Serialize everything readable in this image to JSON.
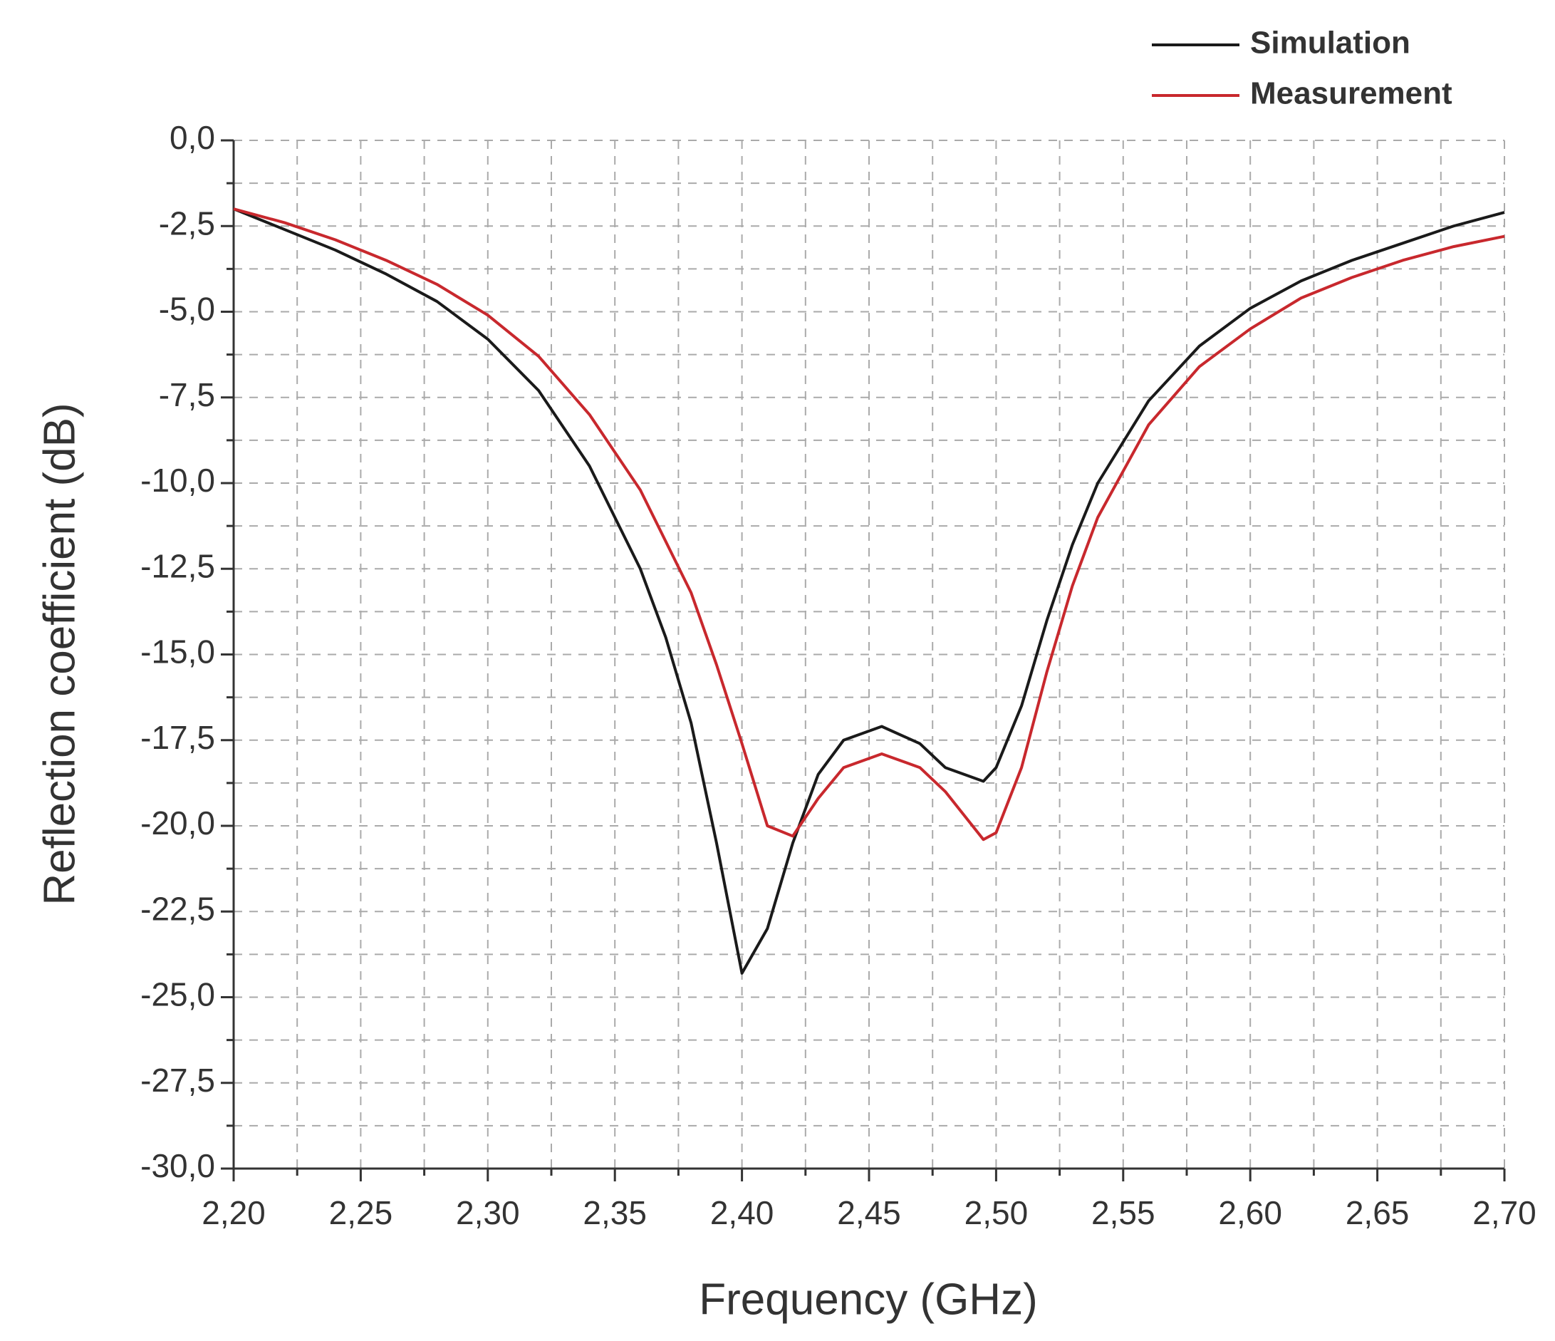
{
  "chart_data": {
    "type": "line",
    "xlabel": "Frequency (GHz)",
    "ylabel": "Reflection coefficient (dB)",
    "x": [
      2.2,
      2.22,
      2.24,
      2.26,
      2.28,
      2.3,
      2.32,
      2.34,
      2.36,
      2.37,
      2.38,
      2.39,
      2.4,
      2.41,
      2.42,
      2.43,
      2.44,
      2.455,
      2.47,
      2.48,
      2.495,
      2.5,
      2.51,
      2.52,
      2.53,
      2.54,
      2.56,
      2.58,
      2.6,
      2.62,
      2.64,
      2.66,
      2.68,
      2.7
    ],
    "series": [
      {
        "name": "Simulation",
        "color": "#1a1a1a",
        "values": [
          -2.0,
          -2.6,
          -3.2,
          -3.9,
          -4.7,
          -5.8,
          -7.3,
          -9.5,
          -12.5,
          -14.5,
          -17.0,
          -20.5,
          -24.3,
          -23.0,
          -20.5,
          -18.5,
          -17.5,
          -17.1,
          -17.6,
          -18.3,
          -18.7,
          -18.3,
          -16.5,
          -14.0,
          -11.8,
          -10.0,
          -7.6,
          -6.0,
          -4.9,
          -4.1,
          -3.5,
          -3.0,
          -2.5,
          -2.1
        ]
      },
      {
        "name": "Measurement",
        "color": "#c8282d",
        "values": [
          -2.0,
          -2.4,
          -2.9,
          -3.5,
          -4.2,
          -5.1,
          -6.3,
          -8.0,
          -10.2,
          -11.7,
          -13.2,
          -15.3,
          -17.6,
          -20.0,
          -20.3,
          -19.2,
          -18.3,
          -17.9,
          -18.3,
          -19.0,
          -20.4,
          -20.2,
          -18.3,
          -15.5,
          -13.0,
          -11.0,
          -8.3,
          -6.6,
          -5.5,
          -4.6,
          -4.0,
          -3.5,
          -3.1,
          -2.8
        ]
      }
    ],
    "xlim": [
      2.2,
      2.7
    ],
    "xticks": [
      {
        "value": 2.2,
        "label": "2,20"
      },
      {
        "value": 2.25,
        "label": "2,25"
      },
      {
        "value": 2.3,
        "label": "2,30"
      },
      {
        "value": 2.35,
        "label": "2,35"
      },
      {
        "value": 2.4,
        "label": "2,40"
      },
      {
        "value": 2.45,
        "label": "2,45"
      },
      {
        "value": 2.5,
        "label": "2,50"
      },
      {
        "value": 2.55,
        "label": "2,55"
      },
      {
        "value": 2.6,
        "label": "2,60"
      },
      {
        "value": 2.65,
        "label": "2,65"
      },
      {
        "value": 2.7,
        "label": "2,70"
      }
    ],
    "ylim": [
      -30,
      0
    ],
    "yticks": [
      {
        "value": 0,
        "label": "0,0"
      },
      {
        "value": -2.5,
        "label": "-2,5"
      },
      {
        "value": -5,
        "label": "-5,0"
      },
      {
        "value": -7.5,
        "label": "-7,5"
      },
      {
        "value": -10,
        "label": "-10,0"
      },
      {
        "value": -12.5,
        "label": "-12,5"
      },
      {
        "value": -15,
        "label": "-15,0"
      },
      {
        "value": -17.5,
        "label": "-17,5"
      },
      {
        "value": -20,
        "label": "-20,0"
      },
      {
        "value": -22.5,
        "label": "-22,5"
      },
      {
        "value": -25,
        "label": "-25,0"
      },
      {
        "value": -27.5,
        "label": "-27,5"
      },
      {
        "value": -30,
        "label": "-30,0"
      }
    ],
    "grid": true,
    "legend": "top-right"
  }
}
